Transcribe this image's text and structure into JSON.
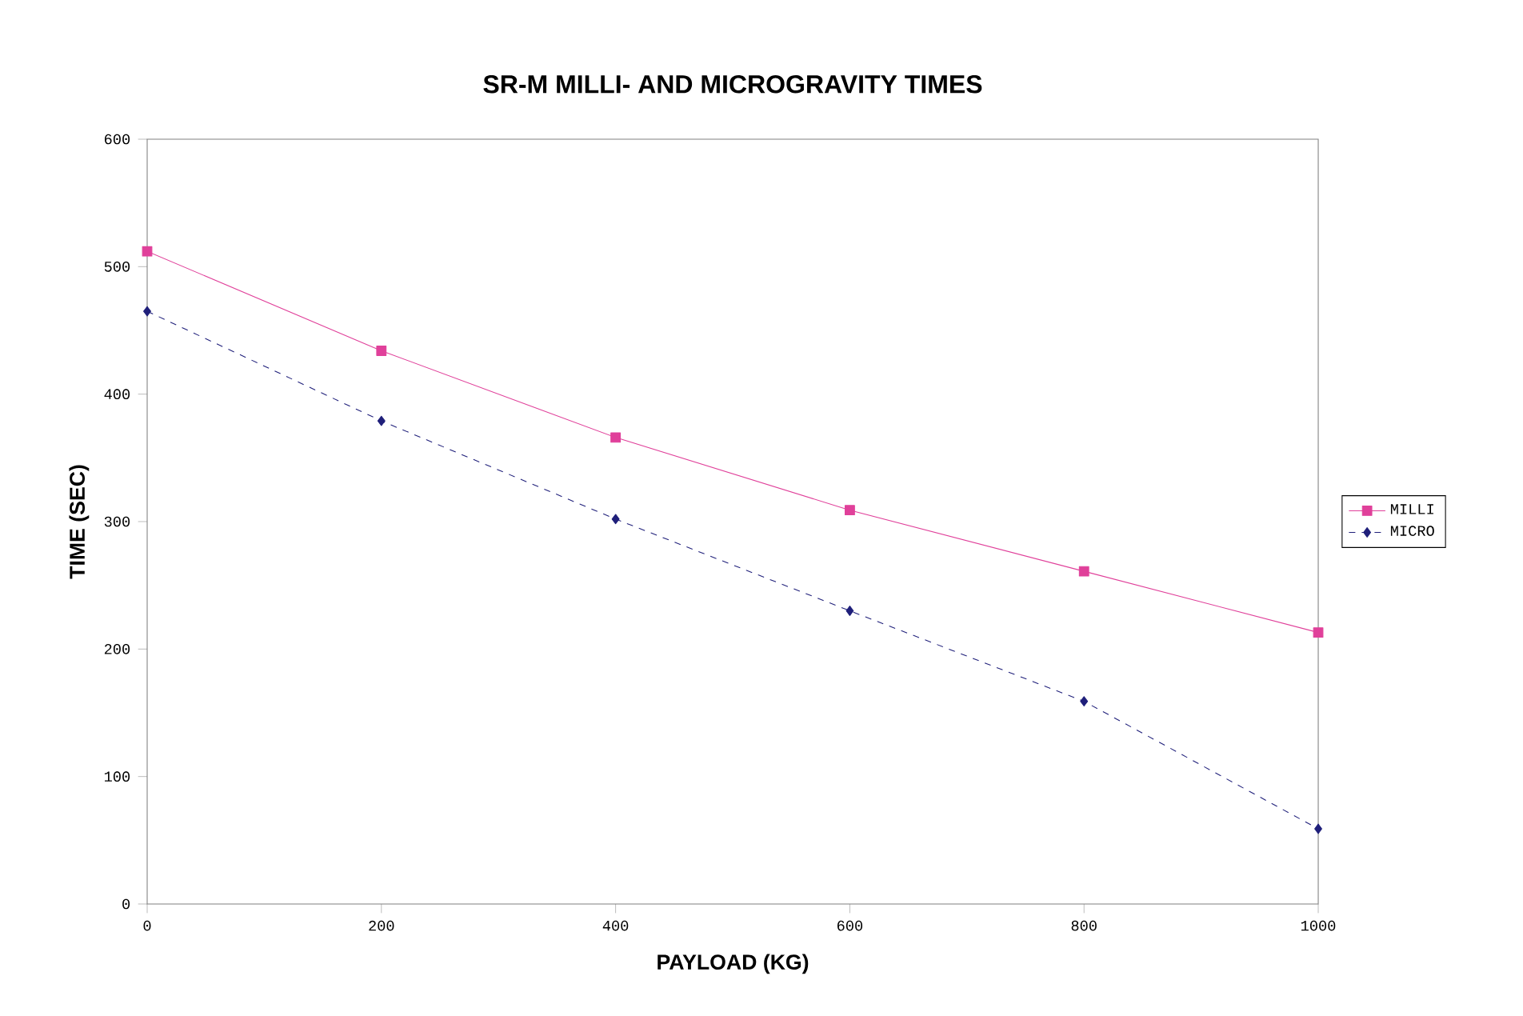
{
  "chart_data": {
    "type": "line",
    "title": "SR-M MILLI- AND MICROGRAVITY TIMES",
    "xlabel": "PAYLOAD (KG)",
    "ylabel": "TIME (SEC)",
    "x": [
      0,
      200,
      400,
      600,
      800,
      1000
    ],
    "series": [
      {
        "name": "MILLI",
        "color": "#e0409a",
        "marker": "square",
        "line_style": "solid",
        "values": [
          512,
          434,
          366,
          309,
          261,
          213
        ]
      },
      {
        "name": "MICRO",
        "color": "#1f1f7a",
        "marker": "diamond",
        "line_style": "dashed",
        "values": [
          465,
          379,
          302,
          230,
          159,
          59
        ]
      }
    ],
    "xlim": [
      0,
      1000
    ],
    "ylim": [
      0,
      600
    ],
    "xticks": [
      0,
      200,
      400,
      600,
      800,
      1000
    ],
    "yticks": [
      0,
      100,
      200,
      300,
      400,
      500,
      600
    ],
    "grid": false,
    "legend": "right"
  }
}
